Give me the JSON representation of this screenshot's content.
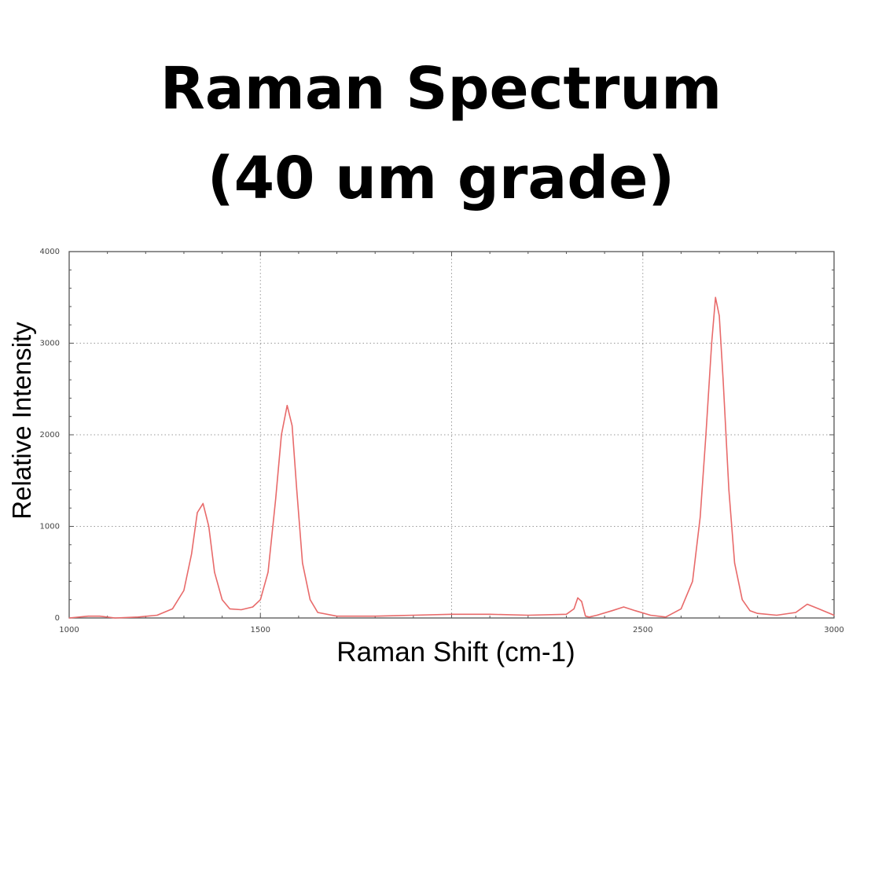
{
  "chart_data": {
    "type": "line",
    "title": "Raman Spectrum",
    "subtitle": "(40 um grade)",
    "xlabel": "Raman Shift (cm-1)",
    "ylabel": "Relative Intensity",
    "xlim": [
      1000,
      3000
    ],
    "ylim": [
      0,
      4000
    ],
    "x_ticks": [
      "1000",
      "1500",
      "2500",
      "3000"
    ],
    "y_ticks": [
      "0",
      "1000",
      "2000",
      "3000",
      "4000"
    ],
    "grid": true,
    "line_color": "#e86a6a",
    "series": [
      {
        "x": [
          1000,
          1050,
          1080,
          1120,
          1180,
          1230,
          1270,
          1300,
          1320,
          1335,
          1350,
          1365,
          1380,
          1400,
          1420,
          1450,
          1480,
          1500,
          1520,
          1540,
          1555,
          1570,
          1583,
          1595,
          1610,
          1630,
          1650,
          1700,
          1800,
          1900,
          2000,
          2100,
          2200,
          2300,
          2320,
          2330,
          2340,
          2350,
          2360,
          2380,
          2420,
          2450,
          2480,
          2520,
          2560,
          2600,
          2630,
          2650,
          2665,
          2680,
          2690,
          2700,
          2710,
          2725,
          2740,
          2760,
          2780,
          2800,
          2850,
          2900,
          2930,
          2960,
          3000
        ],
        "values": [
          0,
          20,
          20,
          0,
          10,
          30,
          100,
          300,
          700,
          1150,
          1250,
          1000,
          500,
          200,
          100,
          90,
          120,
          200,
          500,
          1300,
          2000,
          2320,
          2100,
          1400,
          600,
          200,
          60,
          20,
          20,
          30,
          40,
          40,
          30,
          40,
          100,
          220,
          180,
          20,
          10,
          30,
          80,
          120,
          80,
          30,
          10,
          100,
          400,
          1100,
          2000,
          3000,
          3500,
          3300,
          2600,
          1400,
          600,
          200,
          80,
          50,
          30,
          60,
          150,
          100,
          30
        ]
      }
    ]
  }
}
